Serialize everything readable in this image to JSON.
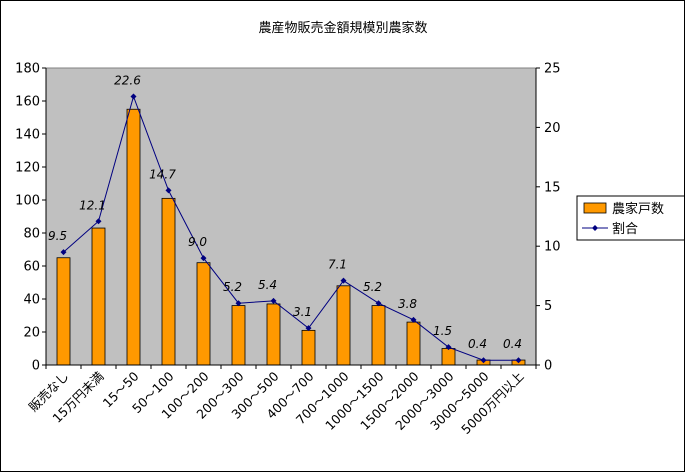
{
  "chart_data": {
    "type": "bar",
    "title": "農産物販売金額規模別農家数",
    "categories": [
      "販売なし",
      "15万円未満",
      "15～50",
      "50～100",
      "100～200",
      "200～300",
      "300～500",
      "400～700",
      "700～1000",
      "1000～1500",
      "1500～2000",
      "2000～3000",
      "3000～5000",
      "5000万円以上"
    ],
    "series": [
      {
        "name": "農家戸数",
        "type": "bar",
        "axis": "left",
        "color": "#ff9900",
        "values": [
          65,
          83,
          155,
          101,
          62,
          36,
          37,
          21,
          48,
          36,
          26,
          10,
          3,
          3
        ]
      },
      {
        "name": "割合",
        "type": "line",
        "axis": "right",
        "color": "#000080",
        "values": [
          9.5,
          12.1,
          22.6,
          14.7,
          9.0,
          5.2,
          5.4,
          3.1,
          7.1,
          5.2,
          3.8,
          1.5,
          0.4,
          0.4
        ],
        "labels": [
          "9.5",
          "12.1",
          "22.6",
          "14.7",
          "9.0",
          "5.2",
          "5.4",
          "3.1",
          "7.1",
          "5.2",
          "3.8",
          "1.5",
          "0.4",
          "0.4"
        ]
      }
    ],
    "ylim_left": [
      0,
      180
    ],
    "yticks_left": [
      0,
      20,
      40,
      60,
      80,
      100,
      120,
      140,
      160,
      180
    ],
    "ylim_right": [
      0,
      25
    ],
    "yticks_right": [
      0,
      5,
      10,
      15,
      20,
      25
    ],
    "plot_background": "#c0c0c0",
    "grid": false,
    "legend_position": "right"
  }
}
